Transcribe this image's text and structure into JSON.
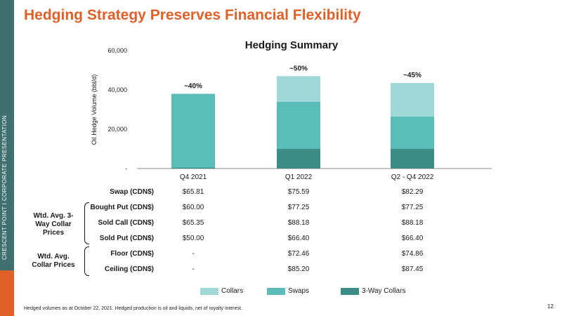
{
  "slide": {
    "title": "Hedging Strategy Preserves Financial Flexibility",
    "sidebar_text": "CRESCENT POINT  I  CORPORATE PRESENTATION",
    "footnote": "Hedged volumes as at October 22, 2021. Hedged production is oil and liquids, net of royalty interest.",
    "page_number": "12"
  },
  "colors": {
    "brand_orange": "#e0602a",
    "sidebar_teal": "#3f6f6f",
    "collars": "#9fd8d6",
    "swaps": "#5bbdb7",
    "three_way_collars": "#3a8c84"
  },
  "chart_data": {
    "type": "bar",
    "stacked": true,
    "title": "Hedging Summary",
    "ylabel": "Oil Hedge Volume (bbl/d)",
    "xlabel": "",
    "ylim": [
      0,
      60000
    ],
    "yticks": [
      0,
      20000,
      40000,
      60000
    ],
    "ytick_labels": [
      "-",
      "20,000",
      "40,000",
      "60,000"
    ],
    "categories": [
      "Q4 2021",
      "Q1 2022",
      "Q2 - Q4 2022"
    ],
    "series": [
      {
        "name": "3-Way Collars",
        "color": "#3a8c84",
        "values": [
          500,
          10000,
          10000
        ]
      },
      {
        "name": "Swaps",
        "color": "#5bbdb7",
        "values": [
          37500,
          24000,
          16500
        ]
      },
      {
        "name": "Collars",
        "color": "#9fd8d6",
        "values": [
          0,
          13000,
          17000
        ]
      }
    ],
    "bar_labels": [
      "~40%",
      "~50%",
      "~45%"
    ],
    "legend_order": [
      "Collars",
      "Swaps",
      "3-Way Collars"
    ],
    "legend_position": "bottom",
    "grid": false
  },
  "price_table": {
    "rows": [
      {
        "label": "Swap (CDN$)",
        "values": [
          "$65.81",
          "$75.59",
          "$82.29"
        ]
      },
      {
        "label": "Bought Put (CDN$)",
        "values": [
          "$60.00",
          "$77.25",
          "$77.25"
        ]
      },
      {
        "label": "Sold Call (CDN$)",
        "values": [
          "$65.35",
          "$88.18",
          "$88.18"
        ]
      },
      {
        "label": "Sold Put (CDN$)",
        "values": [
          "$50.00",
          "$66.40",
          "$66.40"
        ]
      },
      {
        "label": "Floor (CDN$)",
        "values": [
          "-",
          "$72.46",
          "$74.86"
        ]
      },
      {
        "label": "Ceiling (CDN$)",
        "values": [
          "-",
          "$85.20",
          "$87.45"
        ]
      }
    ],
    "groups": [
      {
        "label": "Wtd. Avg. 3-Way Collar Prices"
      },
      {
        "label": "Wtd. Avg. Collar Prices"
      }
    ]
  }
}
